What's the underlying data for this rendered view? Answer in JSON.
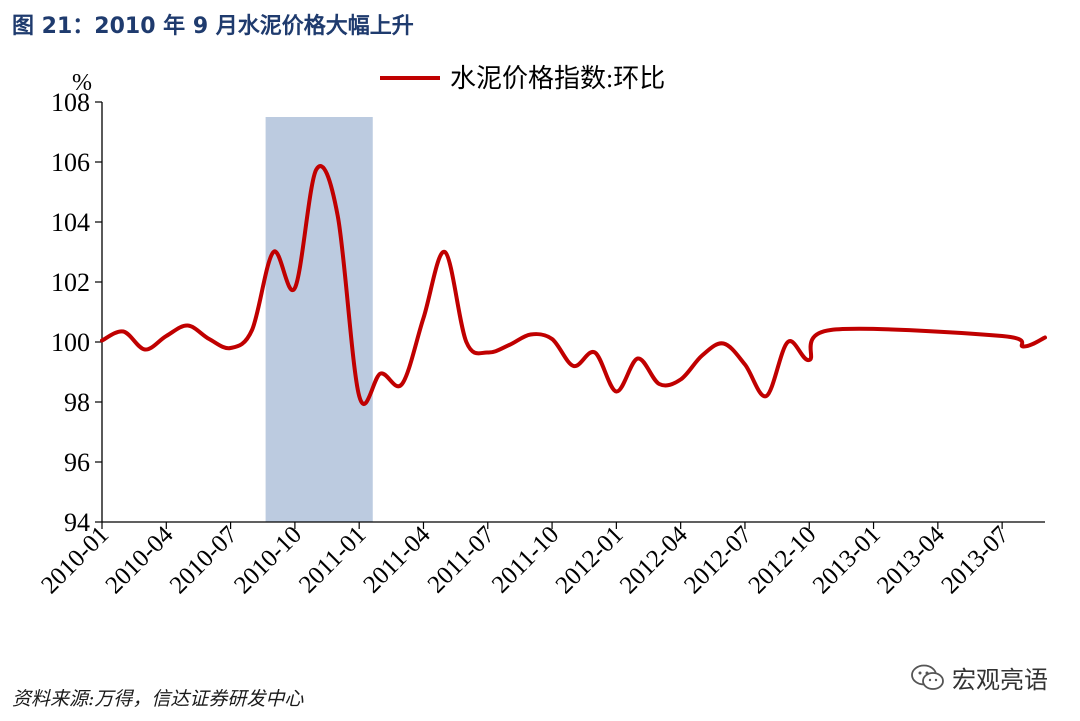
{
  "figure": {
    "title": "图 21：2010 年 9 月水泥价格大幅上升",
    "source": "资料来源:万得，信达证券研发中心",
    "watermark": "宏观亮语"
  },
  "colors": {
    "line": "#c00000",
    "highlight": "#bccbe0",
    "axis": "#000000",
    "title": "#1f3b6e"
  },
  "chart_data": {
    "type": "line",
    "ylabel": "%",
    "ylim": [
      94,
      108
    ],
    "yticks": [
      94,
      96,
      98,
      100,
      102,
      104,
      106,
      108
    ],
    "xlim": [
      "2010-01",
      "2013-09"
    ],
    "xticks": [
      "2010-01",
      "2010-04",
      "2010-07",
      "2010-10",
      "2011-01",
      "2011-04",
      "2011-07",
      "2011-10",
      "2012-01",
      "2012-04",
      "2012-07",
      "2012-10",
      "2013-01",
      "2013-04",
      "2013-07"
    ],
    "grid": false,
    "legend_position": "top-center",
    "highlight_range": [
      "2010-08-20",
      "2011-01-20"
    ],
    "series": [
      {
        "name": "水泥价格指数:环比",
        "x": [
          "2010-01",
          "2010-02",
          "2010-03",
          "2010-04",
          "2010-05",
          "2010-06",
          "2010-07",
          "2010-08",
          "2010-09",
          "2010-10",
          "2010-11",
          "2010-12",
          "2011-01",
          "2011-02",
          "2011-03",
          "2011-04",
          "2011-05",
          "2011-06",
          "2011-07",
          "2011-08",
          "2011-09",
          "2011-10",
          "2011-11",
          "2011-12",
          "2012-01",
          "2012-02",
          "2012-03",
          "2012-04",
          "2012-05",
          "2012-06",
          "2012-07",
          "2012-08",
          "2012-09",
          "2012-10",
          "2012-11",
          "2013-07",
          "2013-08",
          "2013-09"
        ],
        "values": [
          100.05,
          100.35,
          99.75,
          100.2,
          100.55,
          100.1,
          99.8,
          100.4,
          103.0,
          101.8,
          105.75,
          104.2,
          98.2,
          98.95,
          98.6,
          100.8,
          103.0,
          100.0,
          99.65,
          99.9,
          100.25,
          100.1,
          99.2,
          99.65,
          98.35,
          99.45,
          98.6,
          98.75,
          99.55,
          99.95,
          99.25,
          98.2,
          100.0,
          99.4,
          100.4,
          100.2,
          99.85,
          100.15
        ]
      }
    ]
  }
}
